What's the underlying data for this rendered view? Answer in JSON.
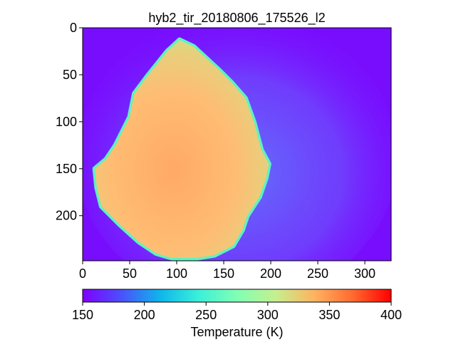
{
  "chart_data": {
    "type": "heatmap",
    "title": "hyb2_tir_20180806_175526_l2",
    "image_width": 328,
    "image_height": 248,
    "xlim": [
      0,
      328
    ],
    "ylim": [
      248,
      0
    ],
    "x_ticks": [
      0,
      50,
      100,
      150,
      200,
      250,
      300
    ],
    "y_ticks": [
      0,
      50,
      100,
      150,
      200
    ],
    "background_temperature": 155,
    "object_outline": [
      [
        103,
        13
      ],
      [
        118,
        20
      ],
      [
        145,
        45
      ],
      [
        158,
        58
      ],
      [
        173,
        75
      ],
      [
        182,
        100
      ],
      [
        190,
        130
      ],
      [
        198,
        145
      ],
      [
        195,
        160
      ],
      [
        188,
        180
      ],
      [
        175,
        200
      ],
      [
        170,
        215
      ],
      [
        160,
        232
      ],
      [
        140,
        242
      ],
      [
        122,
        245
      ],
      [
        95,
        245
      ],
      [
        78,
        240
      ],
      [
        60,
        228
      ],
      [
        40,
        210
      ],
      [
        20,
        190
      ],
      [
        15,
        170
      ],
      [
        13,
        150
      ],
      [
        25,
        140
      ],
      [
        35,
        125
      ],
      [
        50,
        95
      ],
      [
        55,
        70
      ],
      [
        70,
        50
      ],
      [
        90,
        25
      ]
    ],
    "object_temperature_range": [
      290,
      345
    ],
    "colorbar": {
      "label": "Temperature (K)",
      "range": [
        150,
        400
      ],
      "ticks": [
        150,
        200,
        250,
        300,
        350,
        400
      ],
      "colormap": "rainbow",
      "orientation": "horizontal"
    }
  }
}
